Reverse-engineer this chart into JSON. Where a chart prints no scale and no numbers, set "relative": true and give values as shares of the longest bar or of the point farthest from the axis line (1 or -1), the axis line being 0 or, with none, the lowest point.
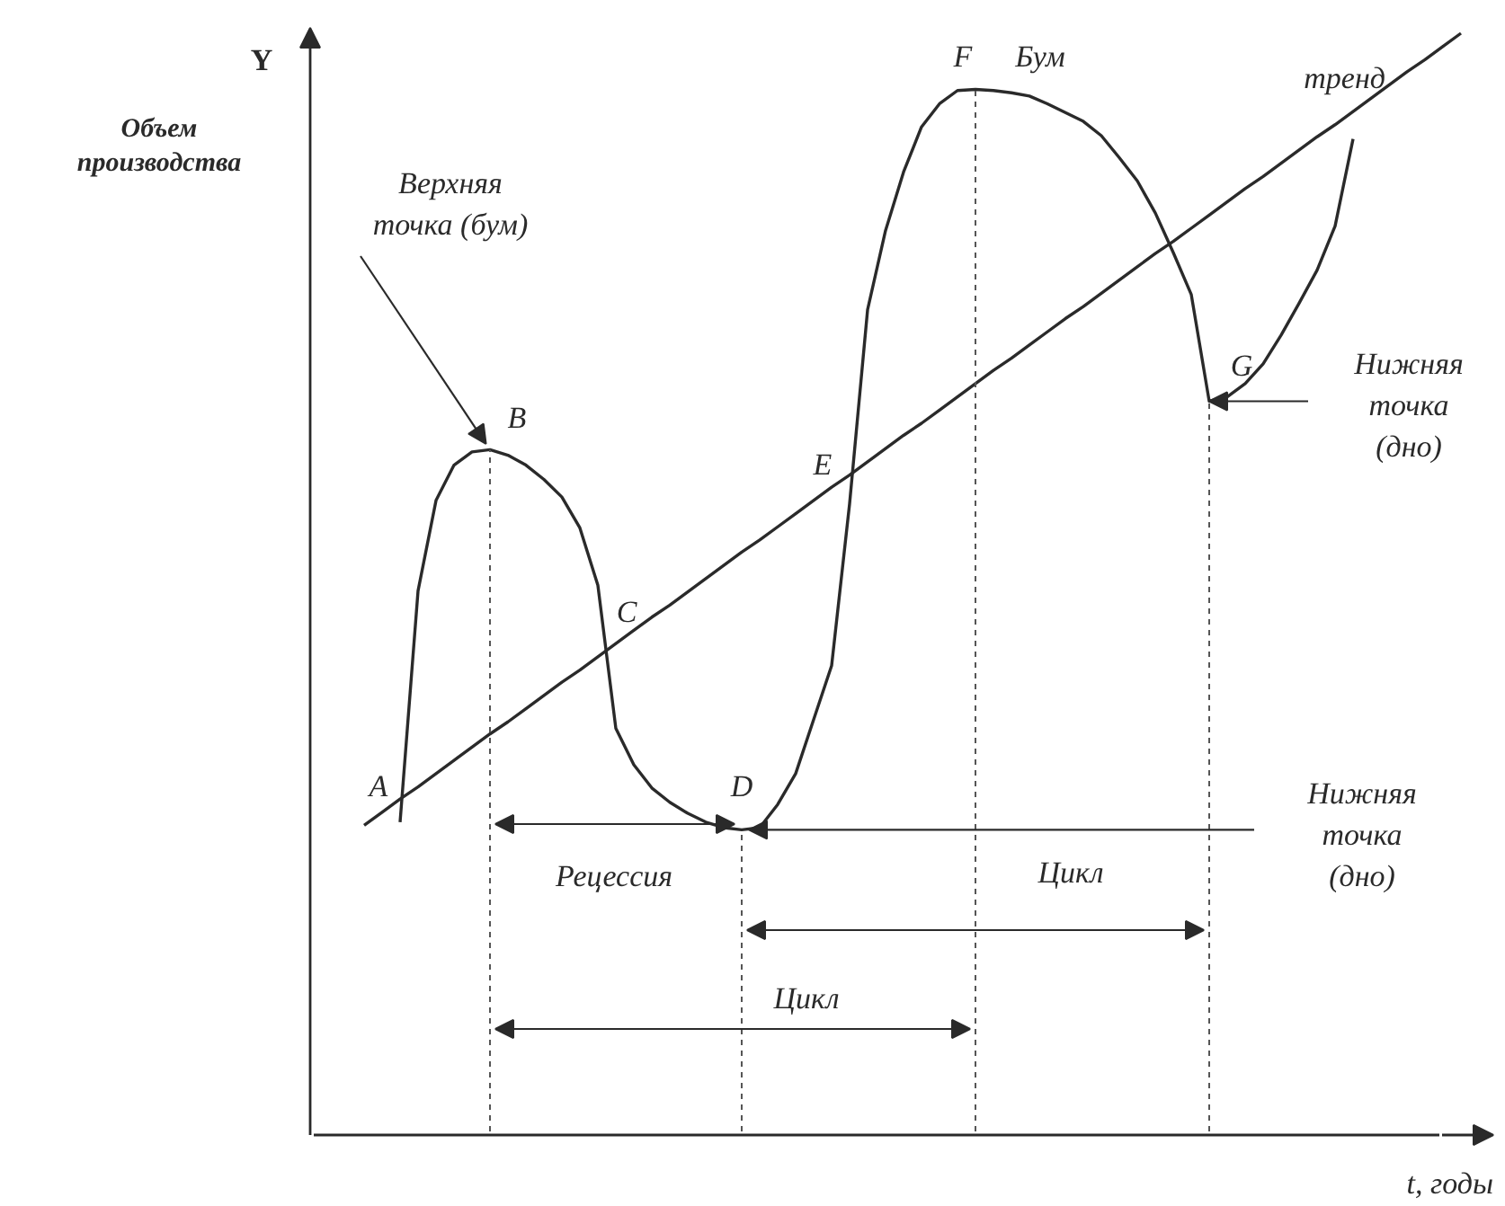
{
  "chart_data": {
    "type": "line",
    "relative": true,
    "legend": false,
    "grid": false,
    "tick_labels": false,
    "xlabel": "t, годы",
    "ylabel": "Объем производства",
    "categories": [
      null,
      null,
      null,
      null,
      null,
      null,
      null,
      null,
      null,
      null,
      null,
      null,
      null,
      null,
      null,
      null,
      null,
      null,
      null,
      null,
      null,
      null,
      null,
      null,
      null,
      null,
      null,
      null,
      null,
      null,
      null,
      null,
      null,
      null,
      null,
      null,
      null,
      null,
      null,
      null,
      null,
      null,
      null,
      null,
      null,
      null,
      null,
      null,
      null,
      null,
      null,
      null,
      null,
      null,
      null,
      null,
      null,
      null,
      null,
      null,
      null,
      null
    ],
    "series": [
      {
        "color": "#2a2a2a",
        "values": [
          null,
          null,
          0.284,
          0.494,
          0.576,
          0.608,
          0.62,
          0.622,
          0.617,
          0.608,
          0.595,
          0.579,
          0.551,
          0.499,
          0.369,
          0.336,
          0.315,
          0.302,
          0.292,
          0.284,
          0.279,
          0.277,
          0.279,
          0.3,
          0.328,
          0.377,
          0.426,
          0.573,
          0.749,
          0.821,
          0.874,
          0.915,
          0.936,
          0.948,
          0.949,
          0.948,
          0.946,
          0.943,
          0.936,
          0.928,
          0.92,
          0.907,
          0.887,
          0.866,
          0.837,
          0.801,
          0.763,
          0.666,
          0.67,
          0.682,
          0.7,
          0.726,
          0.755,
          0.785,
          0.825,
          0.904,
          null,
          null,
          null,
          null,
          null,
          null
        ]
      },
      {
        "name": "тренд",
        "color": "#2a2a2a",
        "values": [
          0.281,
          0.293,
          0.305,
          0.316,
          0.328,
          0.34,
          0.352,
          0.364,
          0.375,
          0.387,
          0.399,
          0.411,
          0.422,
          0.434,
          0.446,
          0.458,
          0.47,
          0.481,
          0.493,
          0.505,
          0.517,
          0.529,
          0.54,
          0.552,
          0.564,
          0.576,
          0.588,
          0.599,
          0.611,
          0.623,
          0.635,
          0.646,
          0.658,
          0.67,
          0.682,
          0.694,
          0.705,
          0.717,
          0.729,
          0.741,
          0.752,
          0.764,
          0.776,
          0.788,
          0.8,
          0.811,
          0.823,
          0.835,
          0.847,
          0.859,
          0.87,
          0.882,
          0.894,
          0.906,
          0.917,
          0.929,
          0.941,
          0.953,
          0.965,
          0.976,
          0.988,
          1.0
        ]
      }
    ],
    "annotations": [
      "Y",
      "A",
      "B",
      "C",
      "D",
      "E",
      "F",
      "Бум",
      "G",
      "Верхняя точка (бум)",
      "Нижняя точка (дно)",
      "Нижняя точка (дно)",
      "Рецессия",
      "Цикл",
      "Цикл"
    ]
  }
}
